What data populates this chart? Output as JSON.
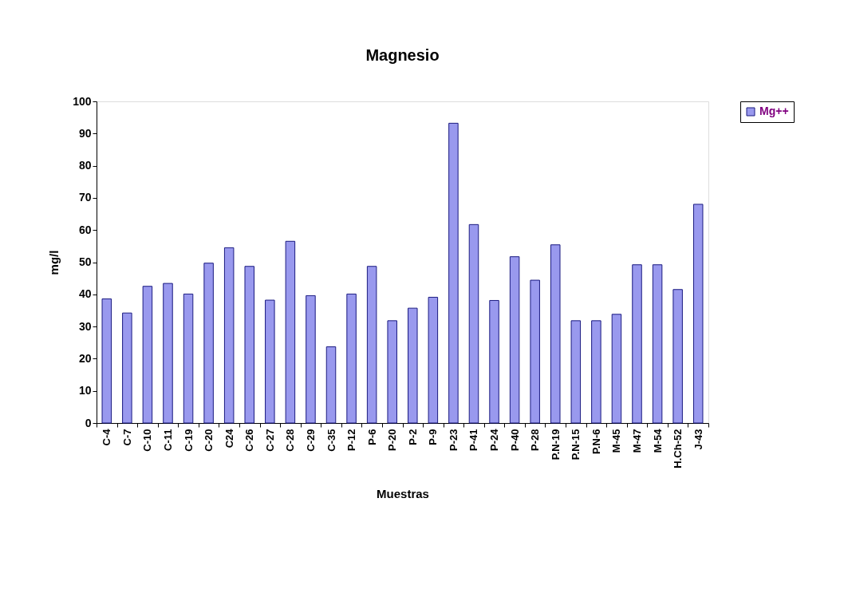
{
  "chart_data": {
    "type": "bar",
    "title": "Magnesio",
    "xlabel": "Muestras",
    "ylabel": "mg/l",
    "categories": [
      "C-4",
      "C-7",
      "C-10",
      "C-11",
      "C-19",
      "C-20",
      "C24",
      "C-26",
      "C-27",
      "C-28",
      "C-29",
      "C-35",
      "P-12",
      "P-6",
      "P-20",
      "P-2",
      "P-9",
      "P-23",
      "P-41",
      "P-24",
      "P-40",
      "P-28",
      "P.N-19",
      "P.N-15",
      "P.N-6",
      "M-45",
      "M-47",
      "M-54",
      "H.Ch-52",
      "J-43"
    ],
    "series": [
      {
        "name": "Mg++",
        "color": "#9999ee",
        "values": [
          38.6,
          34.2,
          42.5,
          43.4,
          40.1,
          49.7,
          54.5,
          48.7,
          38.2,
          56.5,
          39.6,
          23.7,
          40.1,
          48.7,
          31.8,
          35.7,
          39.1,
          93.2,
          61.7,
          38.1,
          51.7,
          44.4,
          55.4,
          31.8,
          31.8,
          33.8,
          49.2,
          49.2,
          41.5,
          68.0
        ]
      }
    ],
    "ylim": [
      0,
      100
    ],
    "yticks": [
      0,
      10,
      20,
      30,
      40,
      50,
      60,
      70,
      80,
      90,
      100
    ],
    "grid": false,
    "legend": "right"
  }
}
